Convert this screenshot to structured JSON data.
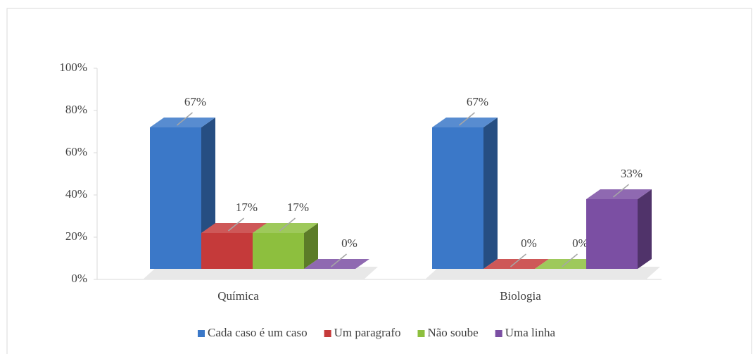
{
  "chart_data": {
    "type": "bar3d",
    "categories": [
      "Química",
      "Biologia"
    ],
    "series": [
      {
        "name": "Cada caso é um caso",
        "color": "#3b78c8",
        "values": [
          67,
          67
        ],
        "value_labels": [
          "67%",
          "67%"
        ]
      },
      {
        "name": "Um paragrafo",
        "color": "#c53a3a",
        "values": [
          17,
          0
        ],
        "value_labels": [
          "17%",
          "0%"
        ]
      },
      {
        "name": "Não soube",
        "color": "#8dbf3e",
        "values": [
          17,
          0
        ],
        "value_labels": [
          "17%",
          "0%"
        ]
      },
      {
        "name": "Uma linha",
        "color": "#7b4fa3",
        "values": [
          0,
          33
        ],
        "value_labels": [
          "0%",
          "33%"
        ]
      }
    ],
    "ylim": [
      0,
      100
    ],
    "yticks": [
      {
        "value": 0,
        "label": "0%"
      },
      {
        "value": 20,
        "label": "20%"
      },
      {
        "value": 40,
        "label": "40%"
      },
      {
        "value": 60,
        "label": "60%"
      },
      {
        "value": 80,
        "label": "80%"
      },
      {
        "value": 100,
        "label": "100%"
      }
    ],
    "legend": "bottom"
  }
}
